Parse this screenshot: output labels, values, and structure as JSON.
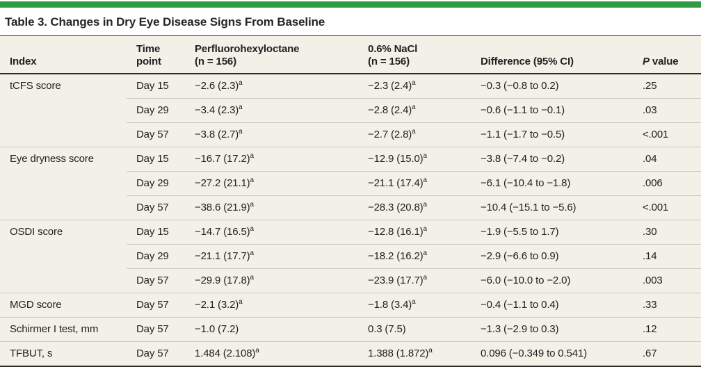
{
  "accent_color": "#2e9a41",
  "table": {
    "title": "Table 3. Changes in Dry Eye Disease Signs From Baseline",
    "header": {
      "cols": [
        {
          "l1": "Index"
        },
        {
          "l1": "Time",
          "l2": "point"
        },
        {
          "l1": "Perfluorohexyloctane",
          "l2": "(n = 156)"
        },
        {
          "l1": "0.6% NaCl",
          "l2": "(n = 156)"
        },
        {
          "l1": "Difference (95% CI)"
        },
        {
          "p_italic": "P",
          "p_rest": " value"
        }
      ]
    },
    "groups": [
      {
        "index": "tCFS score",
        "rows": [
          {
            "time": "Day 15",
            "pfho": {
              "v": "−2.6 (2.3)",
              "sup": "a"
            },
            "nacl": {
              "v": "−2.3 (2.4)",
              "sup": "a"
            },
            "diff": "−0.3 (−0.8 to 0.2)",
            "p": ".25"
          },
          {
            "time": "Day 29",
            "pfho": {
              "v": "−3.4 (2.3)",
              "sup": "a"
            },
            "nacl": {
              "v": "−2.8 (2.4)",
              "sup": "a"
            },
            "diff": "−0.6 (−1.1 to −0.1)",
            "p": ".03"
          },
          {
            "time": "Day 57",
            "pfho": {
              "v": "−3.8 (2.7)",
              "sup": "a"
            },
            "nacl": {
              "v": "−2.7 (2.8)",
              "sup": "a"
            },
            "diff": "−1.1 (−1.7 to −0.5)",
            "p": "<.001"
          }
        ]
      },
      {
        "index": "Eye dryness score",
        "rows": [
          {
            "time": "Day 15",
            "pfho": {
              "v": "−16.7 (17.2)",
              "sup": "a"
            },
            "nacl": {
              "v": "−12.9 (15.0)",
              "sup": "a"
            },
            "diff": "−3.8 (−7.4 to −0.2)",
            "p": ".04"
          },
          {
            "time": "Day 29",
            "pfho": {
              "v": "−27.2 (21.1)",
              "sup": "a"
            },
            "nacl": {
              "v": "−21.1 (17.4)",
              "sup": "a"
            },
            "diff": "−6.1 (−10.4 to −1.8)",
            "p": ".006"
          },
          {
            "time": "Day 57",
            "pfho": {
              "v": "−38.6 (21.9)",
              "sup": "a"
            },
            "nacl": {
              "v": "−28.3 (20.8)",
              "sup": "a"
            },
            "diff": "−10.4 (−15.1 to −5.6)",
            "p": "<.001"
          }
        ]
      },
      {
        "index": "OSDI score",
        "rows": [
          {
            "time": "Day 15",
            "pfho": {
              "v": "−14.7 (16.5)",
              "sup": "a"
            },
            "nacl": {
              "v": "−12.8 (16.1)",
              "sup": "a"
            },
            "diff": "−1.9 (−5.5 to 1.7)",
            "p": ".30"
          },
          {
            "time": "Day 29",
            "pfho": {
              "v": "−21.1 (17.7)",
              "sup": "a"
            },
            "nacl": {
              "v": "−18.2 (16.2)",
              "sup": "a"
            },
            "diff": "−2.9 (−6.6 to 0.9)",
            "p": ".14"
          },
          {
            "time": "Day 57",
            "pfho": {
              "v": "−29.9 (17.8)",
              "sup": "a"
            },
            "nacl": {
              "v": "−23.9 (17.7)",
              "sup": "a"
            },
            "diff": "−6.0 (−10.0 to −2.0)",
            "p": ".003"
          }
        ]
      },
      {
        "index": "MGD score",
        "rows": [
          {
            "time": "Day 57",
            "pfho": {
              "v": "−2.1 (3.2)",
              "sup": "a"
            },
            "nacl": {
              "v": "−1.8 (3.4)",
              "sup": "a"
            },
            "diff": "−0.4 (−1.1 to 0.4)",
            "p": ".33"
          }
        ]
      },
      {
        "index": "Schirmer I test, mm",
        "rows": [
          {
            "time": "Day 57",
            "pfho": {
              "v": "−1.0 (7.2)"
            },
            "nacl": {
              "v": "0.3 (7.5)"
            },
            "diff": "−1.3 (−2.9 to 0.3)",
            "p": ".12"
          }
        ]
      },
      {
        "index": "TFBUT, s",
        "rows": [
          {
            "time": "Day 57",
            "pfho": {
              "v": "1.484 (2.108)",
              "sup": "a"
            },
            "nacl": {
              "v": "1.388 (1.872)",
              "sup": "a"
            },
            "diff": "0.096 (−0.349 to 0.541)",
            "p": ".67"
          }
        ]
      }
    ]
  }
}
